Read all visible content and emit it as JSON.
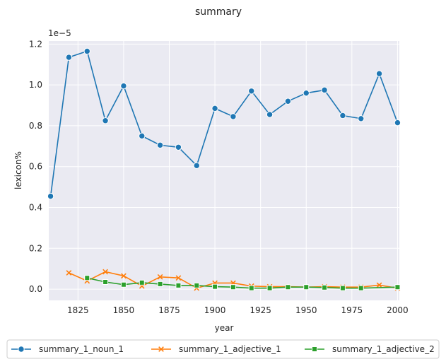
{
  "chart_data": {
    "type": "line",
    "title": "summary",
    "xlabel": "year",
    "ylabel": "lexicon%",
    "y_offset_text": "1e−5",
    "xlim": [
      1809,
      2001
    ],
    "ylim": [
      -0.055,
      1.215
    ],
    "x_ticks": [
      1825,
      1850,
      1875,
      1900,
      1925,
      1950,
      1975,
      2000
    ],
    "y_ticks": [
      0.0,
      0.2,
      0.4,
      0.6,
      0.8,
      1.0,
      1.2
    ],
    "y_tick_labels": [
      "0.0",
      "0.2",
      "0.4",
      "0.6",
      "0.8",
      "1.0",
      "1.2"
    ],
    "grid": true,
    "legend_position": "below",
    "series": [
      {
        "name": "summary_1_noun_1",
        "color": "#1f77b4",
        "marker": "circle",
        "x": [
          1810,
          1820,
          1830,
          1840,
          1850,
          1860,
          1870,
          1880,
          1890,
          1900,
          1910,
          1920,
          1930,
          1940,
          1950,
          1960,
          1970,
          1980,
          1990,
          2000
        ],
        "y": [
          0.455,
          1.135,
          1.165,
          0.825,
          0.995,
          0.75,
          0.705,
          0.695,
          0.605,
          0.885,
          0.845,
          0.97,
          0.855,
          0.92,
          0.96,
          0.975,
          0.85,
          0.835,
          1.055,
          0.815
        ]
      },
      {
        "name": "summary_1_adjective_1",
        "color": "#ff7f0e",
        "marker": "x",
        "x": [
          1820,
          1830,
          1840,
          1850,
          1860,
          1870,
          1880,
          1890,
          1900,
          1910,
          1920,
          1930,
          1940,
          1950,
          1960,
          1970,
          1980,
          1990,
          2000
        ],
        "y": [
          0.08,
          0.04,
          0.085,
          0.065,
          0.015,
          0.06,
          0.055,
          0.005,
          0.03,
          0.03,
          0.015,
          0.012,
          0.012,
          0.01,
          0.012,
          0.01,
          0.01,
          0.02,
          0.005
        ]
      },
      {
        "name": "summary_1_adjective_2",
        "color": "#2ca02c",
        "marker": "square",
        "x": [
          1830,
          1840,
          1850,
          1860,
          1870,
          1880,
          1890,
          1900,
          1910,
          1920,
          1930,
          1940,
          1950,
          1960,
          1970,
          1980,
          2000
        ],
        "y": [
          0.055,
          0.035,
          0.022,
          0.032,
          0.025,
          0.018,
          0.018,
          0.012,
          0.01,
          0.005,
          0.005,
          0.01,
          0.01,
          0.008,
          0.005,
          0.005,
          0.01
        ]
      }
    ]
  }
}
